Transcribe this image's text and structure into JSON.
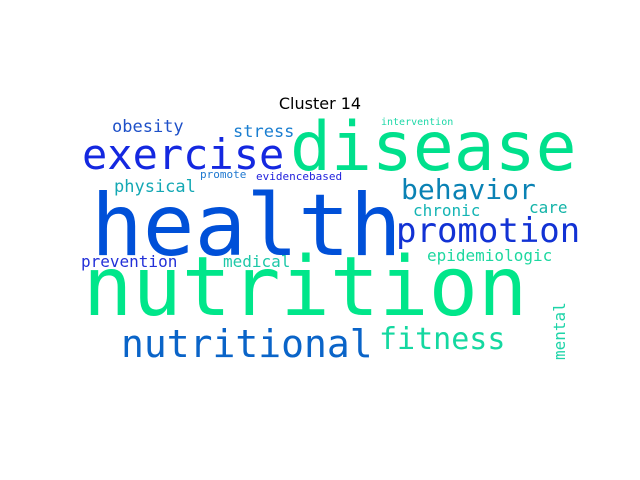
{
  "title": "Cluster 14",
  "words": {
    "health": {
      "text": "health",
      "color": "#0050d8"
    },
    "nutrition": {
      "text": "nutrition",
      "color": "#00e68a"
    },
    "disease": {
      "text": "disease",
      "color": "#00e08c"
    },
    "exercise": {
      "text": "exercise",
      "color": "#1428e0"
    },
    "nutritional": {
      "text": "nutritional",
      "color": "#0a64c8"
    },
    "promotion": {
      "text": "promotion",
      "color": "#1232d4"
    },
    "behavior": {
      "text": "behavior",
      "color": "#0a82b4"
    },
    "fitness": {
      "text": "fitness",
      "color": "#14d8a0"
    },
    "obesity": {
      "text": "obesity",
      "color": "#1e50c8"
    },
    "stress": {
      "text": "stress",
      "color": "#1a7ed0"
    },
    "physical": {
      "text": "physical",
      "color": "#14a8b4"
    },
    "prevention": {
      "text": "prevention",
      "color": "#2230d8"
    },
    "medical": {
      "text": "medical",
      "color": "#1ec8a8"
    },
    "chronic": {
      "text": "chronic",
      "color": "#14b4b4"
    },
    "care": {
      "text": "care",
      "color": "#14b4a8"
    },
    "epidemiologic": {
      "text": "epidemiologic",
      "color": "#1ed8a0"
    },
    "mental": {
      "text": "mental",
      "color": "#1ed4a8"
    },
    "promote": {
      "text": "promote",
      "color": "#1e78d0"
    },
    "evidencebased": {
      "text": "evidencebased",
      "color": "#1e1edc"
    },
    "intervention": {
      "text": "intervention",
      "color": "#1ed8a8"
    }
  }
}
